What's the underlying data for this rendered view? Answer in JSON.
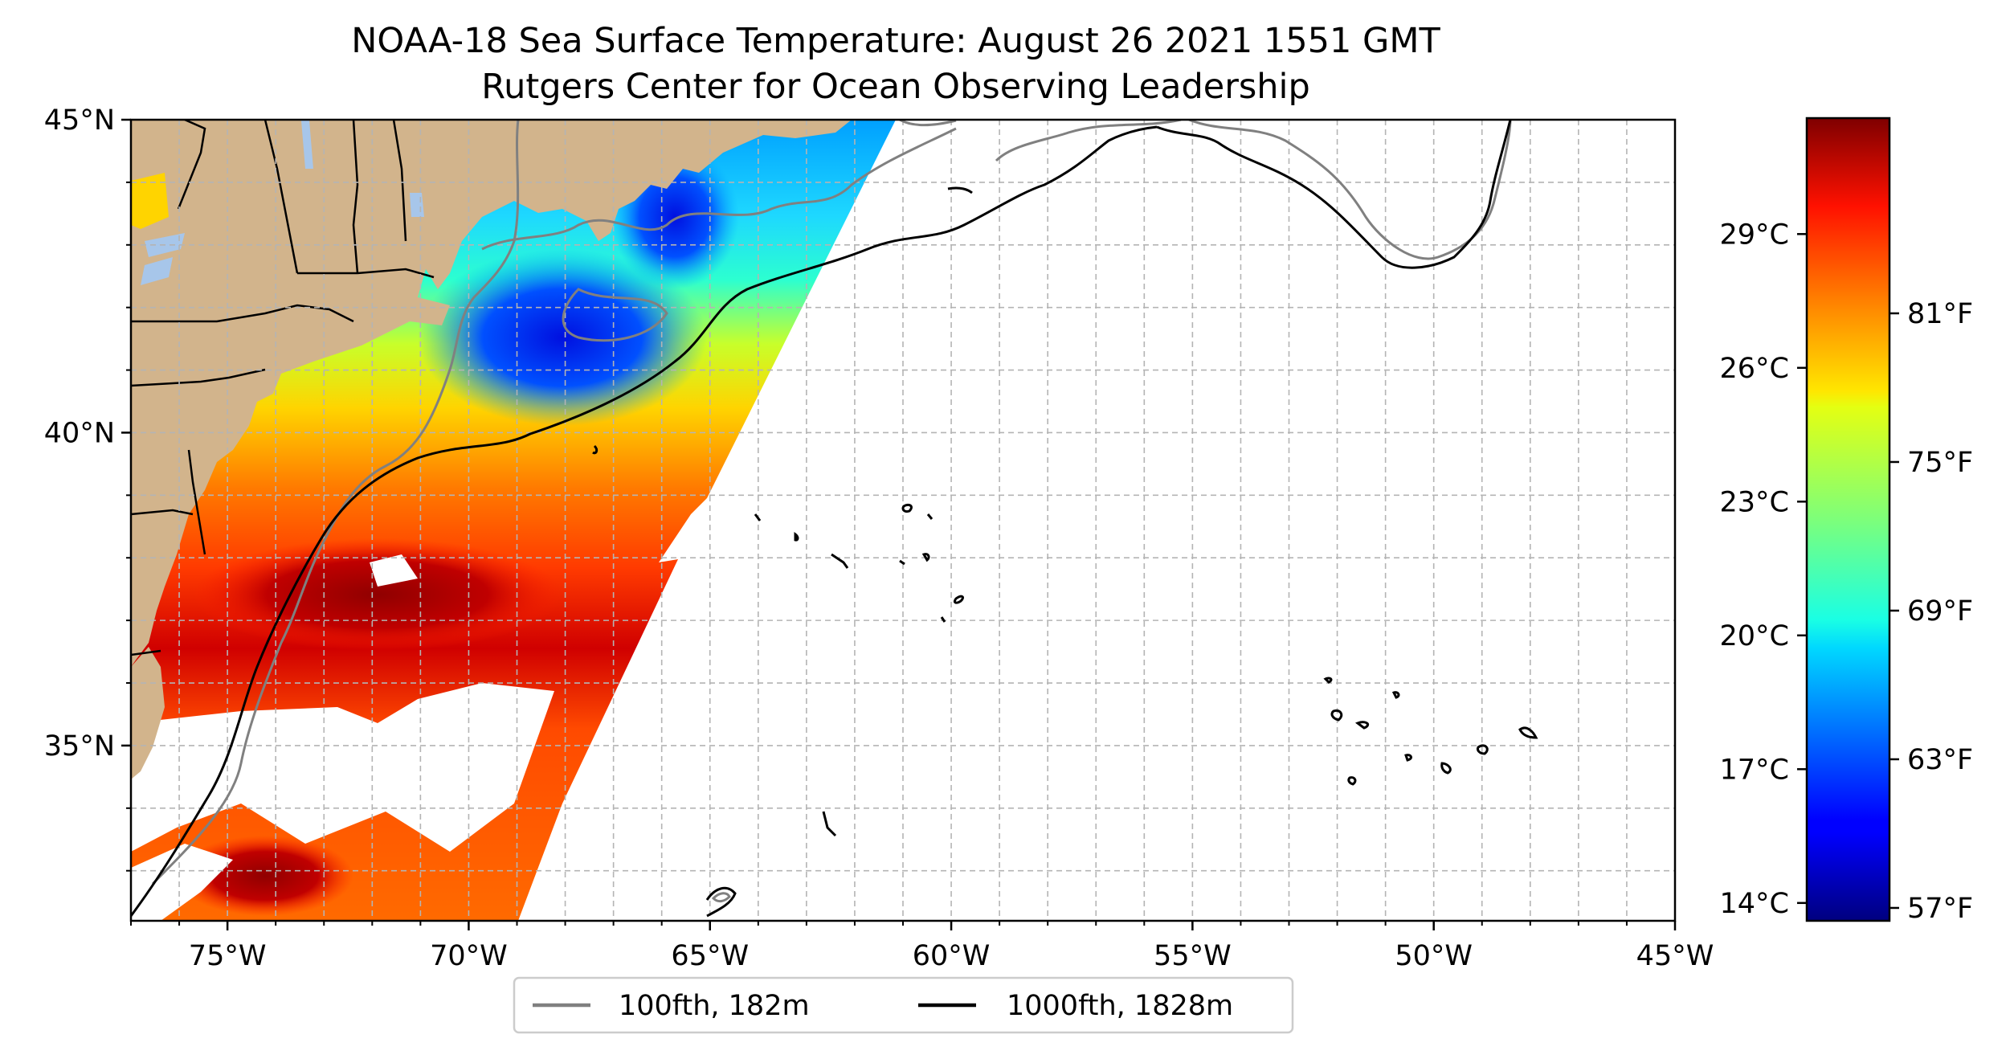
{
  "title": {
    "line1": "NOAA-18 Sea Surface Temperature: August 26 2021 1551 GMT",
    "line2": "Rutgers Center for Ocean Observing Leadership"
  },
  "map": {
    "lon_range": [
      -77,
      -45
    ],
    "lat_range": [
      32.2,
      45
    ],
    "lon_ticks": [
      {
        "value": -75,
        "label": "75°W"
      },
      {
        "value": -70,
        "label": "70°W"
      },
      {
        "value": -65,
        "label": "65°W"
      },
      {
        "value": -60,
        "label": "60°W"
      },
      {
        "value": -55,
        "label": "55°W"
      },
      {
        "value": -50,
        "label": "50°W"
      },
      {
        "value": -45,
        "label": "45°W"
      }
    ],
    "lat_ticks": [
      {
        "value": 45,
        "label": "45°N"
      },
      {
        "value": 40,
        "label": "40°N"
      },
      {
        "value": 35,
        "label": "35°N"
      }
    ],
    "grid": true,
    "colors": {
      "land": "#d2b48c",
      "lakes": "#a7c6ea",
      "no_data": "#ffffff"
    }
  },
  "colorbar": {
    "colormap": "jet",
    "range_c": [
      13.6,
      31.6
    ],
    "celsius_ticks": [
      {
        "value": 29,
        "label": "29°C"
      },
      {
        "value": 26,
        "label": "26°C"
      },
      {
        "value": 23,
        "label": "23°C"
      },
      {
        "value": 20,
        "label": "20°C"
      },
      {
        "value": 17,
        "label": "17°C"
      },
      {
        "value": 14,
        "label": "14°C"
      }
    ],
    "fahrenheit_ticks": [
      {
        "value": 81,
        "label": "81°F"
      },
      {
        "value": 75,
        "label": "75°F"
      },
      {
        "value": 69,
        "label": "69°F"
      },
      {
        "value": 63,
        "label": "63°F"
      },
      {
        "value": 57,
        "label": "57°F"
      }
    ]
  },
  "legend": {
    "placement": "bottom-center",
    "items": [
      {
        "label": "100fth, 182m",
        "color": "#808080"
      },
      {
        "label": "1000fth, 1828m",
        "color": "#000000"
      }
    ]
  }
}
